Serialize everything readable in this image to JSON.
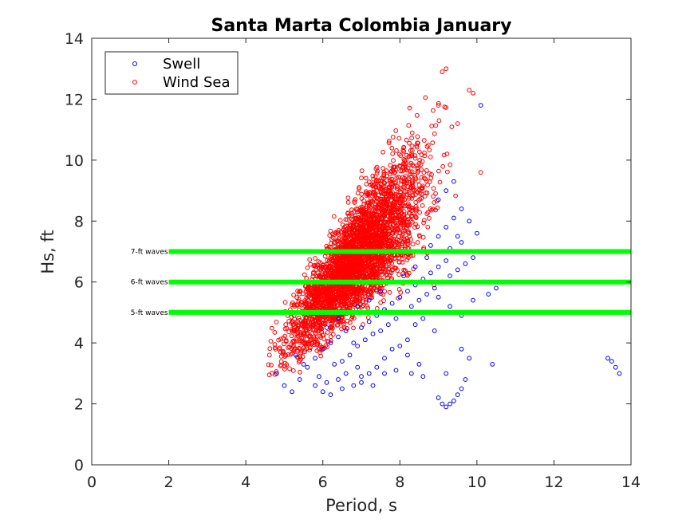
{
  "chart_data": {
    "type": "scatter",
    "title": "Santa Marta Colombia January",
    "xlabel": "Period, s",
    "ylabel": "Hs, ft",
    "xlim": [
      0,
      14
    ],
    "ylim": [
      0,
      14
    ],
    "xticks": [
      0,
      2,
      4,
      6,
      8,
      10,
      12,
      14
    ],
    "yticks": [
      0,
      2,
      4,
      6,
      8,
      10,
      12,
      14
    ],
    "grid": false,
    "legend_position": "top-left",
    "series": [
      {
        "name": "Swell",
        "color": "#0000ff",
        "marker": "open-circle",
        "points": [
          [
            4.8,
            3.0
          ],
          [
            5.0,
            2.6
          ],
          [
            5.2,
            2.4
          ],
          [
            5.4,
            2.8
          ],
          [
            5.6,
            3.2
          ],
          [
            5.8,
            2.6
          ],
          [
            6.0,
            2.4
          ],
          [
            6.2,
            2.3
          ],
          [
            6.4,
            2.8
          ],
          [
            6.6,
            3.0
          ],
          [
            6.8,
            2.6
          ],
          [
            7.0,
            2.7
          ],
          [
            7.2,
            3.0
          ],
          [
            7.4,
            3.2
          ],
          [
            7.6,
            3.5
          ],
          [
            7.8,
            3.8
          ],
          [
            8.0,
            3.9
          ],
          [
            8.2,
            4.1
          ],
          [
            8.4,
            4.6
          ],
          [
            8.6,
            4.8
          ],
          [
            5.8,
            3.5
          ],
          [
            6.0,
            3.8
          ],
          [
            6.2,
            4.0
          ],
          [
            6.4,
            4.2
          ],
          [
            6.6,
            4.4
          ],
          [
            6.8,
            4.0
          ],
          [
            7.0,
            4.5
          ],
          [
            7.2,
            4.7
          ],
          [
            7.4,
            4.9
          ],
          [
            7.6,
            5.1
          ],
          [
            7.8,
            5.3
          ],
          [
            8.0,
            5.5
          ],
          [
            8.2,
            5.7
          ],
          [
            8.4,
            5.9
          ],
          [
            8.6,
            6.1
          ],
          [
            8.8,
            6.3
          ],
          [
            9.0,
            6.5
          ],
          [
            9.2,
            6.7
          ],
          [
            9.4,
            7.0
          ],
          [
            9.6,
            7.3
          ],
          [
            6.5,
            3.4
          ],
          [
            6.7,
            3.6
          ],
          [
            6.9,
            3.9
          ],
          [
            7.1,
            4.1
          ],
          [
            7.3,
            4.3
          ],
          [
            7.5,
            4.4
          ],
          [
            7.7,
            4.6
          ],
          [
            7.9,
            4.8
          ],
          [
            8.1,
            5.0
          ],
          [
            8.3,
            5.2
          ],
          [
            8.5,
            5.4
          ],
          [
            8.7,
            5.6
          ],
          [
            8.9,
            5.8
          ],
          [
            9.1,
            6.0
          ],
          [
            9.3,
            6.2
          ],
          [
            9.5,
            6.4
          ],
          [
            9.7,
            6.6
          ],
          [
            8.8,
            7.2
          ],
          [
            9.0,
            7.5
          ],
          [
            9.2,
            7.8
          ],
          [
            9.4,
            8.1
          ],
          [
            9.6,
            8.4
          ],
          [
            9.0,
            8.7
          ],
          [
            9.2,
            9.0
          ],
          [
            9.4,
            9.3
          ],
          [
            9.8,
            8.0
          ],
          [
            10.0,
            7.6
          ],
          [
            10.5,
            5.8
          ],
          [
            10.4,
            3.3
          ],
          [
            9.8,
            3.5
          ],
          [
            9.0,
            2.2
          ],
          [
            9.1,
            2.0
          ],
          [
            9.2,
            1.9
          ],
          [
            9.3,
            2.0
          ],
          [
            9.4,
            2.1
          ],
          [
            9.5,
            2.3
          ],
          [
            9.6,
            2.5
          ],
          [
            9.7,
            2.8
          ],
          [
            9.2,
            3.0
          ],
          [
            9.6,
            3.8
          ],
          [
            13.4,
            3.5
          ],
          [
            13.5,
            3.4
          ],
          [
            13.6,
            3.2
          ],
          [
            13.7,
            3.0
          ],
          [
            10.1,
            11.8
          ],
          [
            9.3,
            7.1
          ],
          [
            9.5,
            7.5
          ],
          [
            9.9,
            6.8
          ],
          [
            10.2,
            6.0
          ],
          [
            8.9,
            4.4
          ],
          [
            8.5,
            3.3
          ],
          [
            8.2,
            3.6
          ],
          [
            7.9,
            3.1
          ],
          [
            7.6,
            3.0
          ],
          [
            7.3,
            2.6
          ],
          [
            6.9,
            3.2
          ],
          [
            6.3,
            3.3
          ],
          [
            5.9,
            2.9
          ],
          [
            5.5,
            3.3
          ],
          [
            5.3,
            3.6
          ],
          [
            6.1,
            4.5
          ],
          [
            6.4,
            4.8
          ],
          [
            6.6,
            5.0
          ],
          [
            6.9,
            5.2
          ],
          [
            7.2,
            5.4
          ],
          [
            7.5,
            5.7
          ],
          [
            7.8,
            6.0
          ],
          [
            8.1,
            6.2
          ],
          [
            8.4,
            6.5
          ],
          [
            8.7,
            6.8
          ],
          [
            9.0,
            5.5
          ],
          [
            9.3,
            5.2
          ],
          [
            9.6,
            4.9
          ],
          [
            9.9,
            5.4
          ],
          [
            10.3,
            5.6
          ],
          [
            8.6,
            2.9
          ],
          [
            8.3,
            3.0
          ],
          [
            7.0,
            2.9
          ],
          [
            6.5,
            2.5
          ],
          [
            6.1,
            2.7
          ]
        ]
      },
      {
        "name": "Wind Sea",
        "color": "#ff0000",
        "marker": "open-circle"
      }
    ],
    "reference_lines": [
      {
        "y": 7,
        "label": "7-ft waves",
        "color": "#00ff00",
        "x_start": 2,
        "x_end": 14
      },
      {
        "y": 6,
        "label": "6-ft waves",
        "color": "#00ff00",
        "x_start": 2,
        "x_end": 14
      },
      {
        "y": 5,
        "label": "5-ft waves",
        "color": "#00ff00",
        "x_start": 2,
        "x_end": 14
      }
    ]
  }
}
